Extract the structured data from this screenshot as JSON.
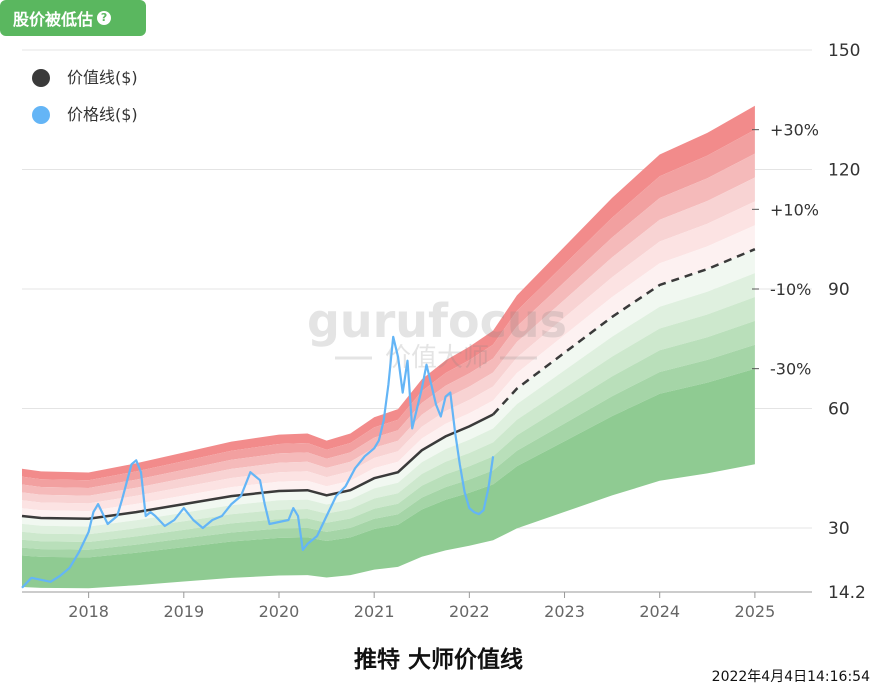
{
  "badge": {
    "label": "股价被低估",
    "help_icon": "question-circle-icon"
  },
  "caption": "推特 大师价值线",
  "timestamp": "2022年4月4日14:16:54",
  "watermark": {
    "brand": "gurufocus",
    "sub": "价值大师"
  },
  "chart_data": {
    "type": "area",
    "title": "推特 大师价值线",
    "legend": [
      {
        "name": "价值线($)",
        "color": "#3a3a3a"
      },
      {
        "name": "价格线($)",
        "color": "#64b5f6"
      }
    ],
    "legend_position": "top-left",
    "x_ticks": [
      "2018",
      "2019",
      "2020",
      "2021",
      "2022",
      "2023",
      "2024",
      "2025"
    ],
    "y_ticks": [
      "150",
      "120",
      "90",
      "60",
      "30",
      "14.2"
    ],
    "ylim": [
      14.2,
      150
    ],
    "xlim": [
      2017.3,
      2025.6
    ],
    "grid": true,
    "band_labels": [
      "+30%",
      "+10%",
      "-10%",
      "-30%"
    ],
    "band_colors": {
      "upper": [
        "#f28b8b",
        "#f2a0a0",
        "#f5baba",
        "#f8d3d3",
        "#fce3e3",
        "#fdf1f1"
      ],
      "lower": [
        "#f1f8f1",
        "#dff0df",
        "#cde8cd",
        "#b9dfba",
        "#a5d5a7",
        "#8fcb92"
      ]
    },
    "value_line": {
      "x": [
        2017.3,
        2017.5,
        2018.0,
        2018.5,
        2019.0,
        2019.5,
        2020.0,
        2020.3,
        2020.5,
        2020.75,
        2021.0,
        2021.25,
        2021.5,
        2021.75,
        2022.0,
        2022.25,
        2022.5,
        2023.0,
        2023.5,
        2024.0,
        2024.5,
        2025.0
      ],
      "y": [
        33,
        32.5,
        32.3,
        34,
        36,
        38,
        39.3,
        39.5,
        38.2,
        39.5,
        42.5,
        44,
        49.5,
        53,
        55.5,
        58.5,
        65,
        74,
        83,
        91,
        95,
        100
      ],
      "projected_from": 2022.25
    },
    "price_line": {
      "x": [
        2017.3,
        2017.4,
        2017.5,
        2017.6,
        2017.7,
        2017.8,
        2017.9,
        2018.0,
        2018.05,
        2018.1,
        2018.2,
        2018.3,
        2018.35,
        2018.45,
        2018.5,
        2018.55,
        2018.6,
        2018.65,
        2018.7,
        2018.8,
        2018.9,
        2019.0,
        2019.1,
        2019.2,
        2019.3,
        2019.4,
        2019.5,
        2019.6,
        2019.7,
        2019.8,
        2019.85,
        2019.9,
        2020.0,
        2020.1,
        2020.15,
        2020.2,
        2020.25,
        2020.3,
        2020.4,
        2020.5,
        2020.6,
        2020.7,
        2020.8,
        2020.9,
        2021.0,
        2021.05,
        2021.1,
        2021.15,
        2021.2,
        2021.25,
        2021.3,
        2021.35,
        2021.4,
        2021.45,
        2021.5,
        2021.55,
        2021.6,
        2021.65,
        2021.7,
        2021.75,
        2021.8,
        2021.85,
        2021.9,
        2021.95,
        2022.0,
        2022.05,
        2022.1,
        2022.15,
        2022.2,
        2022.25
      ],
      "y": [
        15,
        17.5,
        17,
        16.5,
        18,
        20,
        24,
        29,
        34,
        36,
        31,
        33,
        37,
        46,
        47,
        44,
        33,
        34,
        33,
        30.5,
        32,
        35,
        32,
        30,
        32,
        33,
        36,
        38,
        44,
        42,
        36,
        31,
        31.5,
        32,
        35,
        33,
        24.5,
        26,
        28,
        33,
        38,
        40.5,
        45,
        48,
        50,
        52,
        57,
        66,
        78,
        73,
        64,
        72,
        55,
        60,
        65,
        71,
        66,
        61,
        58,
        63,
        64,
        54,
        46,
        39,
        35,
        34,
        33.5,
        34.5,
        40,
        48
      ]
    }
  }
}
